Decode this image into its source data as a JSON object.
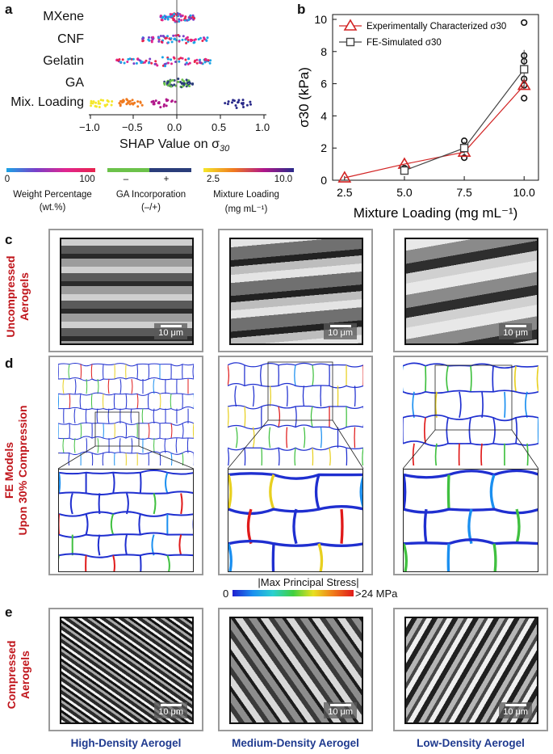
{
  "panel_labels": {
    "a": "a",
    "b": "b",
    "c": "c",
    "d": "d",
    "e": "e"
  },
  "panel_a": {
    "features": [
      "MXene",
      "CNF",
      "Gelatin",
      "GA",
      "Mix. Loading"
    ],
    "x_ticks": [
      "−1.0",
      "−0.5",
      "0.0",
      "0.5",
      "1.0"
    ],
    "x_label": "SHAP Value on σ",
    "x_label_sub": "30",
    "color_legends": [
      {
        "min": "0",
        "mid": "",
        "max": "100",
        "title": "Weight Percentage",
        "subtitle": "(wt.%)",
        "colors": [
          "#1aa3e6",
          "#7a3fc9",
          "#e0258f",
          "#e8244e"
        ]
      },
      {
        "min": "–",
        "mid": "",
        "max": "+",
        "title": "GA Incorporation",
        "subtitle": "(–/+)",
        "colors": [
          "#6cc24a",
          "#6cc24a",
          "#2a3d7a",
          "#2a3d7a"
        ]
      },
      {
        "min": "2.5",
        "mid": "",
        "max": "10.0",
        "title": "Mixture Loading",
        "subtitle": "(mg mL⁻¹)",
        "colors": [
          "#f5e72a",
          "#f07a1f",
          "#b0168a",
          "#2a2a8a"
        ]
      }
    ]
  },
  "chart_data": {
    "type": "line",
    "title": "",
    "xlabel": "Mixture Loading (mg mL⁻¹)",
    "ylabel": "σ30 (kPa)",
    "x": [
      2.5,
      5.0,
      7.5,
      10.0
    ],
    "x_tick_labels": [
      "2.5",
      "5.0",
      "7.5",
      "10.0"
    ],
    "y_ticks": [
      0,
      2,
      4,
      6,
      8,
      10
    ],
    "xlim": [
      2.0,
      10.6
    ],
    "ylim": [
      0,
      10.3
    ],
    "legend_position": "top-left",
    "series": [
      {
        "name": "Experimentally Characterized σ30",
        "values": [
          0.15,
          1.0,
          1.75,
          5.9
        ],
        "color": "#d22424",
        "marker": "triangle"
      },
      {
        "name": "FE-Simulated σ30",
        "values": [
          null,
          0.6,
          2.0,
          6.9
        ],
        "color": "#444444",
        "marker": "square",
        "errors": [
          null,
          0.2,
          0.4,
          1.2
        ]
      }
    ],
    "scatter_points": [
      {
        "x": 5.0,
        "y": 0.55
      },
      {
        "x": 5.0,
        "y": 0.75
      },
      {
        "x": 7.5,
        "y": 1.4
      },
      {
        "x": 7.5,
        "y": 2.1
      },
      {
        "x": 7.5,
        "y": 2.45
      },
      {
        "x": 10.0,
        "y": 5.1
      },
      {
        "x": 10.0,
        "y": 5.9
      },
      {
        "x": 10.0,
        "y": 6.3
      },
      {
        "x": 10.0,
        "y": 7.4
      },
      {
        "x": 10.0,
        "y": 7.75
      },
      {
        "x": 10.0,
        "y": 9.8
      }
    ]
  },
  "row_labels": {
    "c": "Uncompressed\nAerogels",
    "d": "FE Models\nUpon 30% Compression",
    "e": "Compressed\nAerogels"
  },
  "scale_bar": "10 μm",
  "stress_bar": {
    "title": "|Max Principal Stress|",
    "min": "0",
    "max": ">24 MPa"
  },
  "captions": [
    "High-Density Aerogel",
    "Medium-Density Aerogel",
    "Low-Density Aerogel"
  ]
}
